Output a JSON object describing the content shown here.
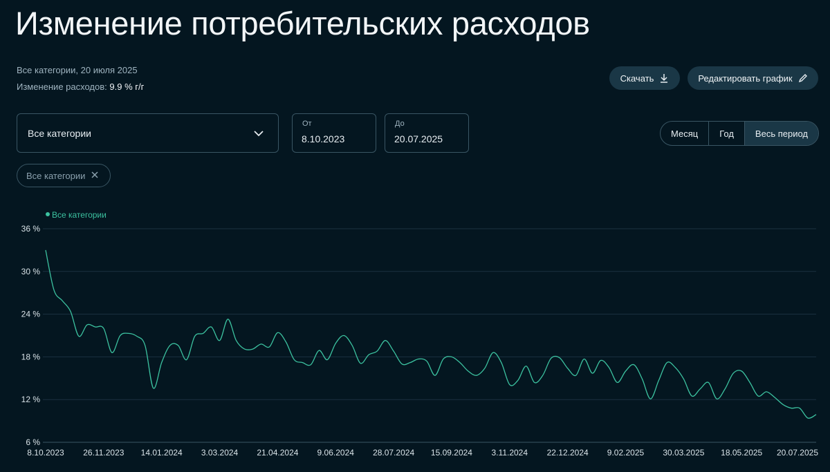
{
  "header": {
    "title": "Изменение потребительских расходов",
    "subtitle": "Все категории, 20 июля 2025",
    "change_label": "Изменение расходов:",
    "change_value": "9.9 % г/г"
  },
  "actions": {
    "download": "Скачать",
    "edit": "Редактировать график"
  },
  "filters": {
    "category": "Все категории",
    "from_label": "От",
    "from": "8.10.2023",
    "to_label": "До",
    "to": "20.07.2025",
    "periods": [
      "Месяц",
      "Год",
      "Весь период"
    ],
    "active_period": 2,
    "chips": [
      "Все категории"
    ]
  },
  "chart_data": {
    "type": "line",
    "grid": true,
    "legend": "top-left",
    "x": [
      "8.10.2023",
      "15.10.2023",
      "22.10.2023",
      "29.10.2023",
      "5.11.2023",
      "12.11.2023",
      "19.11.2023",
      "26.11.2023",
      "3.12.2023",
      "10.12.2023",
      "17.12.2023",
      "24.12.2023",
      "31.12.2023",
      "7.01.2024",
      "14.01.2024",
      "21.01.2024",
      "28.01.2024",
      "4.02.2024",
      "11.02.2024",
      "18.02.2024",
      "25.02.2024",
      "3.03.2024",
      "10.03.2024",
      "17.03.2024",
      "24.03.2024",
      "31.03.2024",
      "7.04.2024",
      "14.04.2024",
      "21.04.2024",
      "28.04.2024",
      "5.05.2024",
      "12.05.2024",
      "19.05.2024",
      "26.05.2024",
      "2.06.2024",
      "9.06.2024",
      "16.06.2024",
      "23.06.2024",
      "30.06.2024",
      "7.07.2024",
      "14.07.2024",
      "21.07.2024",
      "28.07.2024",
      "4.08.2024",
      "11.08.2024",
      "18.08.2024",
      "25.08.2024",
      "1.09.2024",
      "8.09.2024",
      "15.09.2024",
      "22.09.2024",
      "29.09.2024",
      "6.10.2024",
      "13.10.2024",
      "20.10.2024",
      "27.10.2024",
      "3.11.2024",
      "10.11.2024",
      "17.11.2024",
      "24.11.2024",
      "1.12.2024",
      "8.12.2024",
      "15.12.2024",
      "22.12.2024",
      "29.12.2024",
      "5.01.2025",
      "12.01.2025",
      "19.01.2025",
      "26.01.2025",
      "2.02.2025",
      "9.02.2025",
      "16.02.2025",
      "23.02.2025",
      "2.03.2025",
      "9.03.2025",
      "16.03.2025",
      "23.03.2025",
      "30.03.2025",
      "6.04.2025",
      "13.04.2025",
      "20.04.2025",
      "27.04.2025",
      "4.05.2025",
      "11.05.2025",
      "18.05.2025",
      "25.05.2025",
      "1.06.2025",
      "8.06.2025",
      "15.06.2025",
      "22.06.2025",
      "29.06.2025",
      "6.07.2025",
      "13.07.2025",
      "20.07.2025"
    ],
    "series": [
      {
        "name": "Все категории",
        "color": "#3cc2a0",
        "values": [
          33.0,
          27.4,
          25.9,
          24.4,
          20.9,
          22.5,
          22.2,
          22.0,
          18.6,
          21.0,
          21.3,
          20.9,
          19.6,
          13.6,
          17.2,
          19.6,
          19.6,
          17.6,
          20.9,
          21.3,
          22.2,
          20.3,
          23.3,
          20.3,
          19.1,
          19.1,
          19.8,
          19.4,
          21.4,
          20.1,
          17.6,
          17.2,
          16.9,
          18.9,
          17.6,
          19.9,
          21.0,
          19.6,
          17.1,
          18.3,
          18.8,
          20.3,
          18.8,
          17.0,
          17.2,
          17.7,
          17.4,
          15.4,
          17.7,
          18.0,
          17.2,
          16.0,
          15.4,
          16.4,
          18.6,
          17.2,
          14.1,
          14.7,
          16.7,
          14.4,
          15.4,
          17.8,
          17.9,
          16.4,
          15.4,
          17.7,
          15.7,
          17.5,
          16.5,
          14.4,
          16.0,
          16.9,
          14.9,
          12.1,
          14.7,
          17.2,
          16.5,
          14.9,
          12.5,
          13.5,
          14.4,
          12.1,
          13.5,
          15.7,
          16.0,
          14.4,
          12.5,
          13.1,
          12.3,
          11.3,
          10.8,
          10.8,
          9.4,
          9.9
        ]
      }
    ],
    "xlim": [
      "8.10.2023",
      "20.07.2025"
    ],
    "xticks": [
      "8.10.2023",
      "26.11.2023",
      "14.01.2024",
      "3.03.2024",
      "21.04.2024",
      "9.06.2024",
      "28.07.2024",
      "15.09.2024",
      "3.11.2024",
      "22.12.2024",
      "9.02.2025",
      "30.03.2025",
      "18.05.2025",
      "20.07.2025"
    ],
    "ylim": [
      6,
      36
    ],
    "yticks": [
      {
        "value": 6,
        "label": "6 %"
      },
      {
        "value": 12,
        "label": "12 %"
      },
      {
        "value": 18,
        "label": "18 %"
      },
      {
        "value": 24,
        "label": "24 %"
      },
      {
        "value": 30,
        "label": "30 %"
      },
      {
        "value": 36,
        "label": "36 %"
      }
    ]
  }
}
